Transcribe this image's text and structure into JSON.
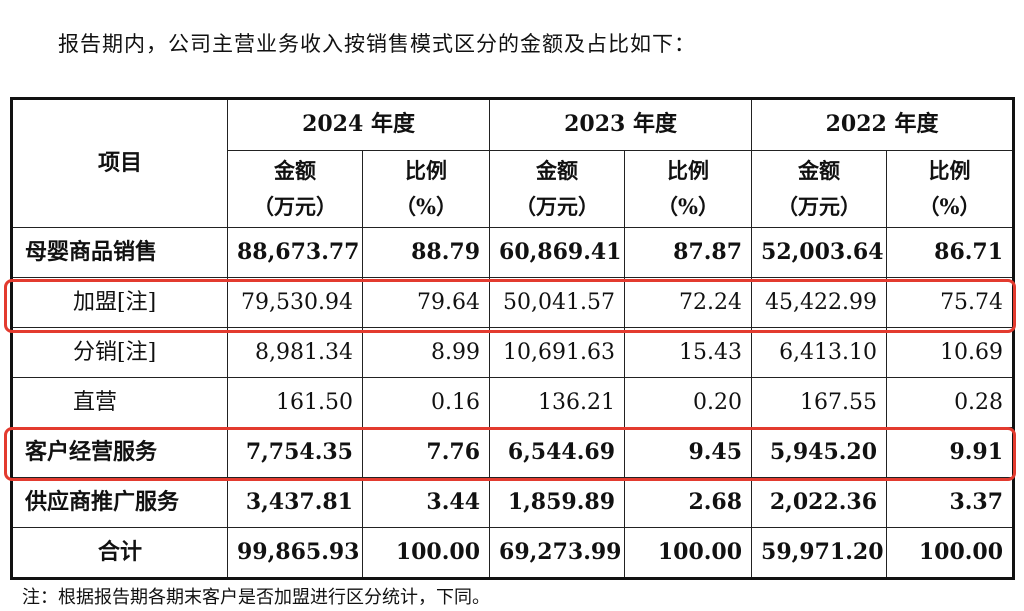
{
  "intro_text": "报告期内，公司主营业务收入按销售模式区分的金额及占比如下：",
  "table": {
    "item_header": "项目",
    "years": [
      "2024 年度",
      "2023 年度",
      "2022 年度"
    ],
    "amount_header_line1": "金额",
    "amount_header_line2": "（万元）",
    "ratio_header_line1": "比例",
    "ratio_header_line2": "（%）",
    "rows": [
      {
        "label": "母婴商品销售",
        "values": [
          "88,673.77",
          "88.79",
          "60,869.41",
          "87.87",
          "52,003.64",
          "86.71"
        ]
      },
      {
        "label": "加盟[注]",
        "values": [
          "79,530.94",
          "79.64",
          "50,041.57",
          "72.24",
          "45,422.99",
          "75.74"
        ]
      },
      {
        "label": "分销[注]",
        "values": [
          "8,981.34",
          "8.99",
          "10,691.63",
          "15.43",
          "6,413.10",
          "10.69"
        ]
      },
      {
        "label": "直营",
        "values": [
          "161.50",
          "0.16",
          "136.21",
          "0.20",
          "167.55",
          "0.28"
        ]
      },
      {
        "label": "客户经营服务",
        "values": [
          "7,754.35",
          "7.76",
          "6,544.69",
          "9.45",
          "5,945.20",
          "9.91"
        ]
      },
      {
        "label": "供应商推广服务",
        "values": [
          "3,437.81",
          "3.44",
          "1,859.89",
          "2.68",
          "2,022.36",
          "3.37"
        ]
      },
      {
        "label": "合计",
        "values": [
          "99,865.93",
          "100.00",
          "69,273.99",
          "100.00",
          "59,971.20",
          "100.00"
        ]
      }
    ]
  },
  "footnote": "注：根据报告期各期末客户是否加盟进行区分统计，下同。",
  "colors": {
    "highlight_border": "#e33b2f"
  }
}
